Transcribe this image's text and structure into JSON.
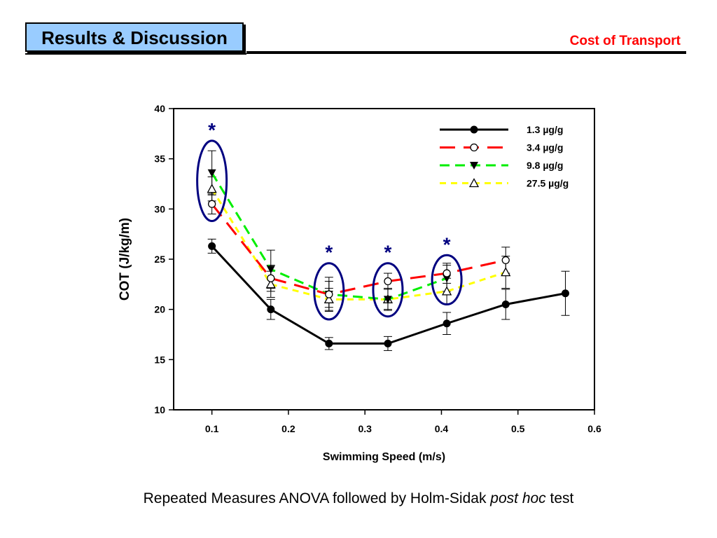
{
  "slide": {
    "header": "Results & Discussion",
    "subtitle": "Cost of Transport",
    "caption_part1": "Repeated Measures ANOVA followed by Holm-Sidak ",
    "caption_italic": "post hoc",
    "caption_part2": " test"
  },
  "chart_data": {
    "type": "line",
    "title": "",
    "xlabel": "Swimming Speed (m/s)",
    "ylabel": "COT (J/kg/m)",
    "xlim": [
      0.05,
      0.6
    ],
    "ylim": [
      10,
      40
    ],
    "xticks": [
      0.1,
      0.2,
      0.3,
      0.4,
      0.5,
      0.6
    ],
    "xtick_labels": [
      "0.1",
      "0.2",
      "0.3",
      "0.4",
      "0.5",
      "0.6"
    ],
    "yticks": [
      10,
      15,
      20,
      25,
      30,
      35,
      40
    ],
    "ytick_labels": [
      "10",
      "15",
      "20",
      "25",
      "30",
      "35",
      "40"
    ],
    "grid": false,
    "legend_position": "top-right",
    "series": [
      {
        "name": "1.3 µg/g",
        "color": "#000000",
        "dash": "solid",
        "marker": "filled-circle",
        "points": [
          {
            "x": 0.1,
            "y": 26.3,
            "err": 0.7
          },
          {
            "x": 0.177,
            "y": 20.0,
            "err": 1.0
          },
          {
            "x": 0.253,
            "y": 16.6,
            "err": 0.6
          },
          {
            "x": 0.33,
            "y": 16.6,
            "err": 0.7
          },
          {
            "x": 0.407,
            "y": 18.6,
            "err": 1.1
          },
          {
            "x": 0.484,
            "y": 20.5,
            "err": 1.5
          },
          {
            "x": 0.562,
            "y": 21.6,
            "err": 2.2
          }
        ]
      },
      {
        "name": "3.4 µg/g",
        "color": "#ff0000",
        "dash": "long",
        "marker": "open-circle",
        "points": [
          {
            "x": 0.1,
            "y": 30.5,
            "err": 1.0
          },
          {
            "x": 0.177,
            "y": 23.1,
            "err": 1.3
          },
          {
            "x": 0.253,
            "y": 21.5,
            "err": 1.3
          },
          {
            "x": 0.33,
            "y": 22.8,
            "err": 0.8
          },
          {
            "x": 0.407,
            "y": 23.6,
            "err": 1.0
          },
          {
            "x": 0.484,
            "y": 24.9,
            "err": 1.3
          }
        ]
      },
      {
        "name": "9.8 µg/g",
        "color": "#00ee00",
        "dash": "medium",
        "marker": "filled-triangle-down",
        "points": [
          {
            "x": 0.1,
            "y": 33.6,
            "err": 2.2
          },
          {
            "x": 0.177,
            "y": 24.0,
            "err": 1.9
          },
          {
            "x": 0.253,
            "y": 21.5,
            "err": 1.7
          },
          {
            "x": 0.33,
            "y": 21.0,
            "err": 1.1
          },
          {
            "x": 0.407,
            "y": 23.1,
            "err": 1.3
          }
        ]
      },
      {
        "name": "27.5 µg/g",
        "color": "#ffff00",
        "dash": "short",
        "marker": "open-triangle-up",
        "points": [
          {
            "x": 0.1,
            "y": 32.0,
            "err": 1.2
          },
          {
            "x": 0.177,
            "y": 22.5,
            "err": 1.3
          },
          {
            "x": 0.253,
            "y": 21.0,
            "err": 1.1
          },
          {
            "x": 0.33,
            "y": 21.0,
            "err": 1.0
          },
          {
            "x": 0.407,
            "y": 21.8,
            "err": 1.3
          },
          {
            "x": 0.484,
            "y": 23.7,
            "err": 1.6
          }
        ]
      }
    ],
    "annotations": [
      {
        "type": "significance-ellipse",
        "x": 0.1,
        "y_min": 28.8,
        "y_max": 36.8,
        "marker": "*"
      },
      {
        "type": "significance-ellipse",
        "x": 0.253,
        "y_min": 19.0,
        "y_max": 24.6,
        "marker": "*"
      },
      {
        "type": "significance-ellipse",
        "x": 0.33,
        "y_min": 19.3,
        "y_max": 24.6,
        "marker": "*"
      },
      {
        "type": "significance-ellipse",
        "x": 0.407,
        "y_min": 20.5,
        "y_max": 25.4,
        "marker": "*"
      }
    ],
    "ellipse_color": "#000080"
  }
}
